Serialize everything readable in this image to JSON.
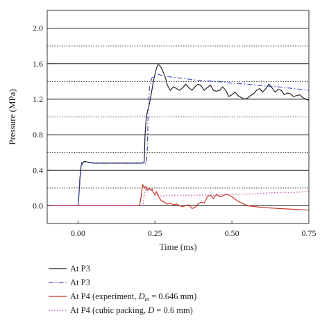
{
  "chart_data": {
    "type": "line",
    "title": "",
    "xlabel": "Time (ms)",
    "ylabel": "Pressure (MPa)",
    "xlim": [
      -0.1,
      0.75
    ],
    "ylim": [
      -0.2,
      2.2
    ],
    "xticks": [
      0.0,
      0.25,
      0.5,
      0.75
    ],
    "xtick_labels": [
      "0.00",
      "0.25",
      "0.50",
      "0.75"
    ],
    "yticks": [
      0.0,
      0.4,
      0.8,
      1.2,
      1.6,
      2.0
    ],
    "ytick_labels": [
      "0.0",
      "0.4",
      "0.8",
      "1.2",
      "1.6",
      "2.0"
    ],
    "grid": {
      "solid_y": [
        0.0,
        0.4,
        0.8,
        1.2,
        1.6,
        2.0
      ],
      "dotted_y": [
        0.2,
        0.6,
        1.0,
        1.4,
        1.8
      ]
    },
    "legend_position": "below",
    "series": [
      {
        "name": "At P3",
        "color": "#222222",
        "style": "solid",
        "x": [
          -0.1,
          0.0,
          0.003,
          0.006,
          0.01,
          0.02,
          0.05,
          0.1,
          0.15,
          0.2,
          0.21,
          0.215,
          0.218,
          0.222,
          0.225,
          0.23,
          0.235,
          0.24,
          0.245,
          0.25,
          0.255,
          0.26,
          0.265,
          0.27,
          0.275,
          0.28,
          0.285,
          0.29,
          0.3,
          0.31,
          0.32,
          0.33,
          0.34,
          0.35,
          0.36,
          0.37,
          0.38,
          0.39,
          0.4,
          0.41,
          0.42,
          0.43,
          0.44,
          0.45,
          0.46,
          0.47,
          0.48,
          0.49,
          0.5,
          0.51,
          0.52,
          0.53,
          0.54,
          0.55,
          0.56,
          0.57,
          0.58,
          0.59,
          0.6,
          0.61,
          0.62,
          0.63,
          0.64,
          0.65,
          0.66,
          0.67,
          0.68,
          0.69,
          0.7,
          0.71,
          0.72,
          0.73,
          0.74,
          0.75
        ],
        "y": [
          0.0,
          0.0,
          0.12,
          0.3,
          0.45,
          0.5,
          0.48,
          0.48,
          0.48,
          0.48,
          0.48,
          0.49,
          0.8,
          1.0,
          1.05,
          1.12,
          1.2,
          1.3,
          1.4,
          1.48,
          1.55,
          1.59,
          1.58,
          1.56,
          1.52,
          1.48,
          1.43,
          1.36,
          1.3,
          1.34,
          1.32,
          1.3,
          1.33,
          1.37,
          1.33,
          1.3,
          1.34,
          1.37,
          1.35,
          1.3,
          1.33,
          1.36,
          1.3,
          1.29,
          1.3,
          1.34,
          1.3,
          1.23,
          1.25,
          1.28,
          1.24,
          1.22,
          1.2,
          1.21,
          1.24,
          1.26,
          1.3,
          1.32,
          1.28,
          1.32,
          1.37,
          1.33,
          1.28,
          1.31,
          1.3,
          1.25,
          1.27,
          1.26,
          1.23,
          1.24,
          1.25,
          1.22,
          1.2,
          1.19
        ]
      },
      {
        "name": "At P3",
        "color": "#4455cc",
        "style": "dash-dot",
        "x": [
          -0.1,
          0.0,
          0.004,
          0.008,
          0.012,
          0.02,
          0.05,
          0.1,
          0.15,
          0.2,
          0.222,
          0.225,
          0.228,
          0.232,
          0.24,
          0.25,
          0.26,
          0.27,
          0.3,
          0.35,
          0.4,
          0.45,
          0.5,
          0.55,
          0.6,
          0.65,
          0.7,
          0.75
        ],
        "y": [
          0.0,
          0.0,
          0.15,
          0.35,
          0.49,
          0.49,
          0.48,
          0.48,
          0.48,
          0.48,
          0.48,
          0.6,
          1.05,
          1.33,
          1.44,
          1.47,
          1.48,
          1.47,
          1.45,
          1.43,
          1.41,
          1.4,
          1.38,
          1.37,
          1.35,
          1.34,
          1.32,
          1.3
        ]
      },
      {
        "name": "At P4 (experiment, D_m = 0.646 mm)",
        "color": "#cc3322",
        "style": "solid",
        "x": [
          -0.1,
          0.0,
          0.1,
          0.2,
          0.205,
          0.21,
          0.215,
          0.22,
          0.225,
          0.23,
          0.235,
          0.24,
          0.245,
          0.25,
          0.255,
          0.26,
          0.27,
          0.28,
          0.29,
          0.3,
          0.31,
          0.32,
          0.33,
          0.34,
          0.35,
          0.36,
          0.37,
          0.38,
          0.39,
          0.4,
          0.41,
          0.42,
          0.43,
          0.44,
          0.45,
          0.46,
          0.47,
          0.48,
          0.49,
          0.5,
          0.52,
          0.55,
          0.6,
          0.65,
          0.7,
          0.75
        ],
        "y": [
          0.0,
          0.0,
          0.0,
          0.0,
          0.1,
          0.24,
          0.2,
          0.22,
          0.17,
          0.2,
          0.18,
          0.19,
          0.15,
          0.12,
          0.16,
          0.11,
          0.06,
          0.04,
          0.02,
          0.03,
          0.01,
          0.02,
          0.0,
          -0.01,
          0.0,
          0.01,
          -0.03,
          -0.02,
          0.02,
          0.04,
          0.03,
          0.1,
          0.12,
          0.08,
          0.13,
          0.1,
          0.11,
          0.13,
          0.12,
          0.1,
          0.05,
          0.0,
          -0.02,
          -0.03,
          -0.04,
          -0.05
        ]
      },
      {
        "name": "At P4 (cubic packing, D = 0.6 mm)",
        "color": "#bb44aa",
        "style": "dotted",
        "x": [
          -0.1,
          0.0,
          0.1,
          0.2,
          0.21,
          0.212,
          0.216,
          0.22,
          0.23,
          0.24,
          0.25,
          0.27,
          0.3,
          0.35,
          0.4,
          0.45,
          0.5,
          0.55,
          0.6,
          0.65,
          0.7,
          0.75
        ],
        "y": [
          0.0,
          0.0,
          0.0,
          0.0,
          0.0,
          0.02,
          0.15,
          0.2,
          0.19,
          0.17,
          0.14,
          0.11,
          0.12,
          0.12,
          0.12,
          0.12,
          0.13,
          0.13,
          0.14,
          0.15,
          0.15,
          0.16
        ]
      }
    ]
  },
  "legend": [
    {
      "label": "At P3"
    },
    {
      "label": "At P3"
    },
    {
      "label_prefix": "At P4 (experiment, ",
      "label_var": "D",
      "label_sub": "m",
      "label_suffix": " = 0.646 mm)"
    },
    {
      "label_prefix": "At P4 (cubic packing, ",
      "label_var": "D",
      "label_sub": "",
      "label_suffix": " = 0.6 mm)"
    }
  ]
}
